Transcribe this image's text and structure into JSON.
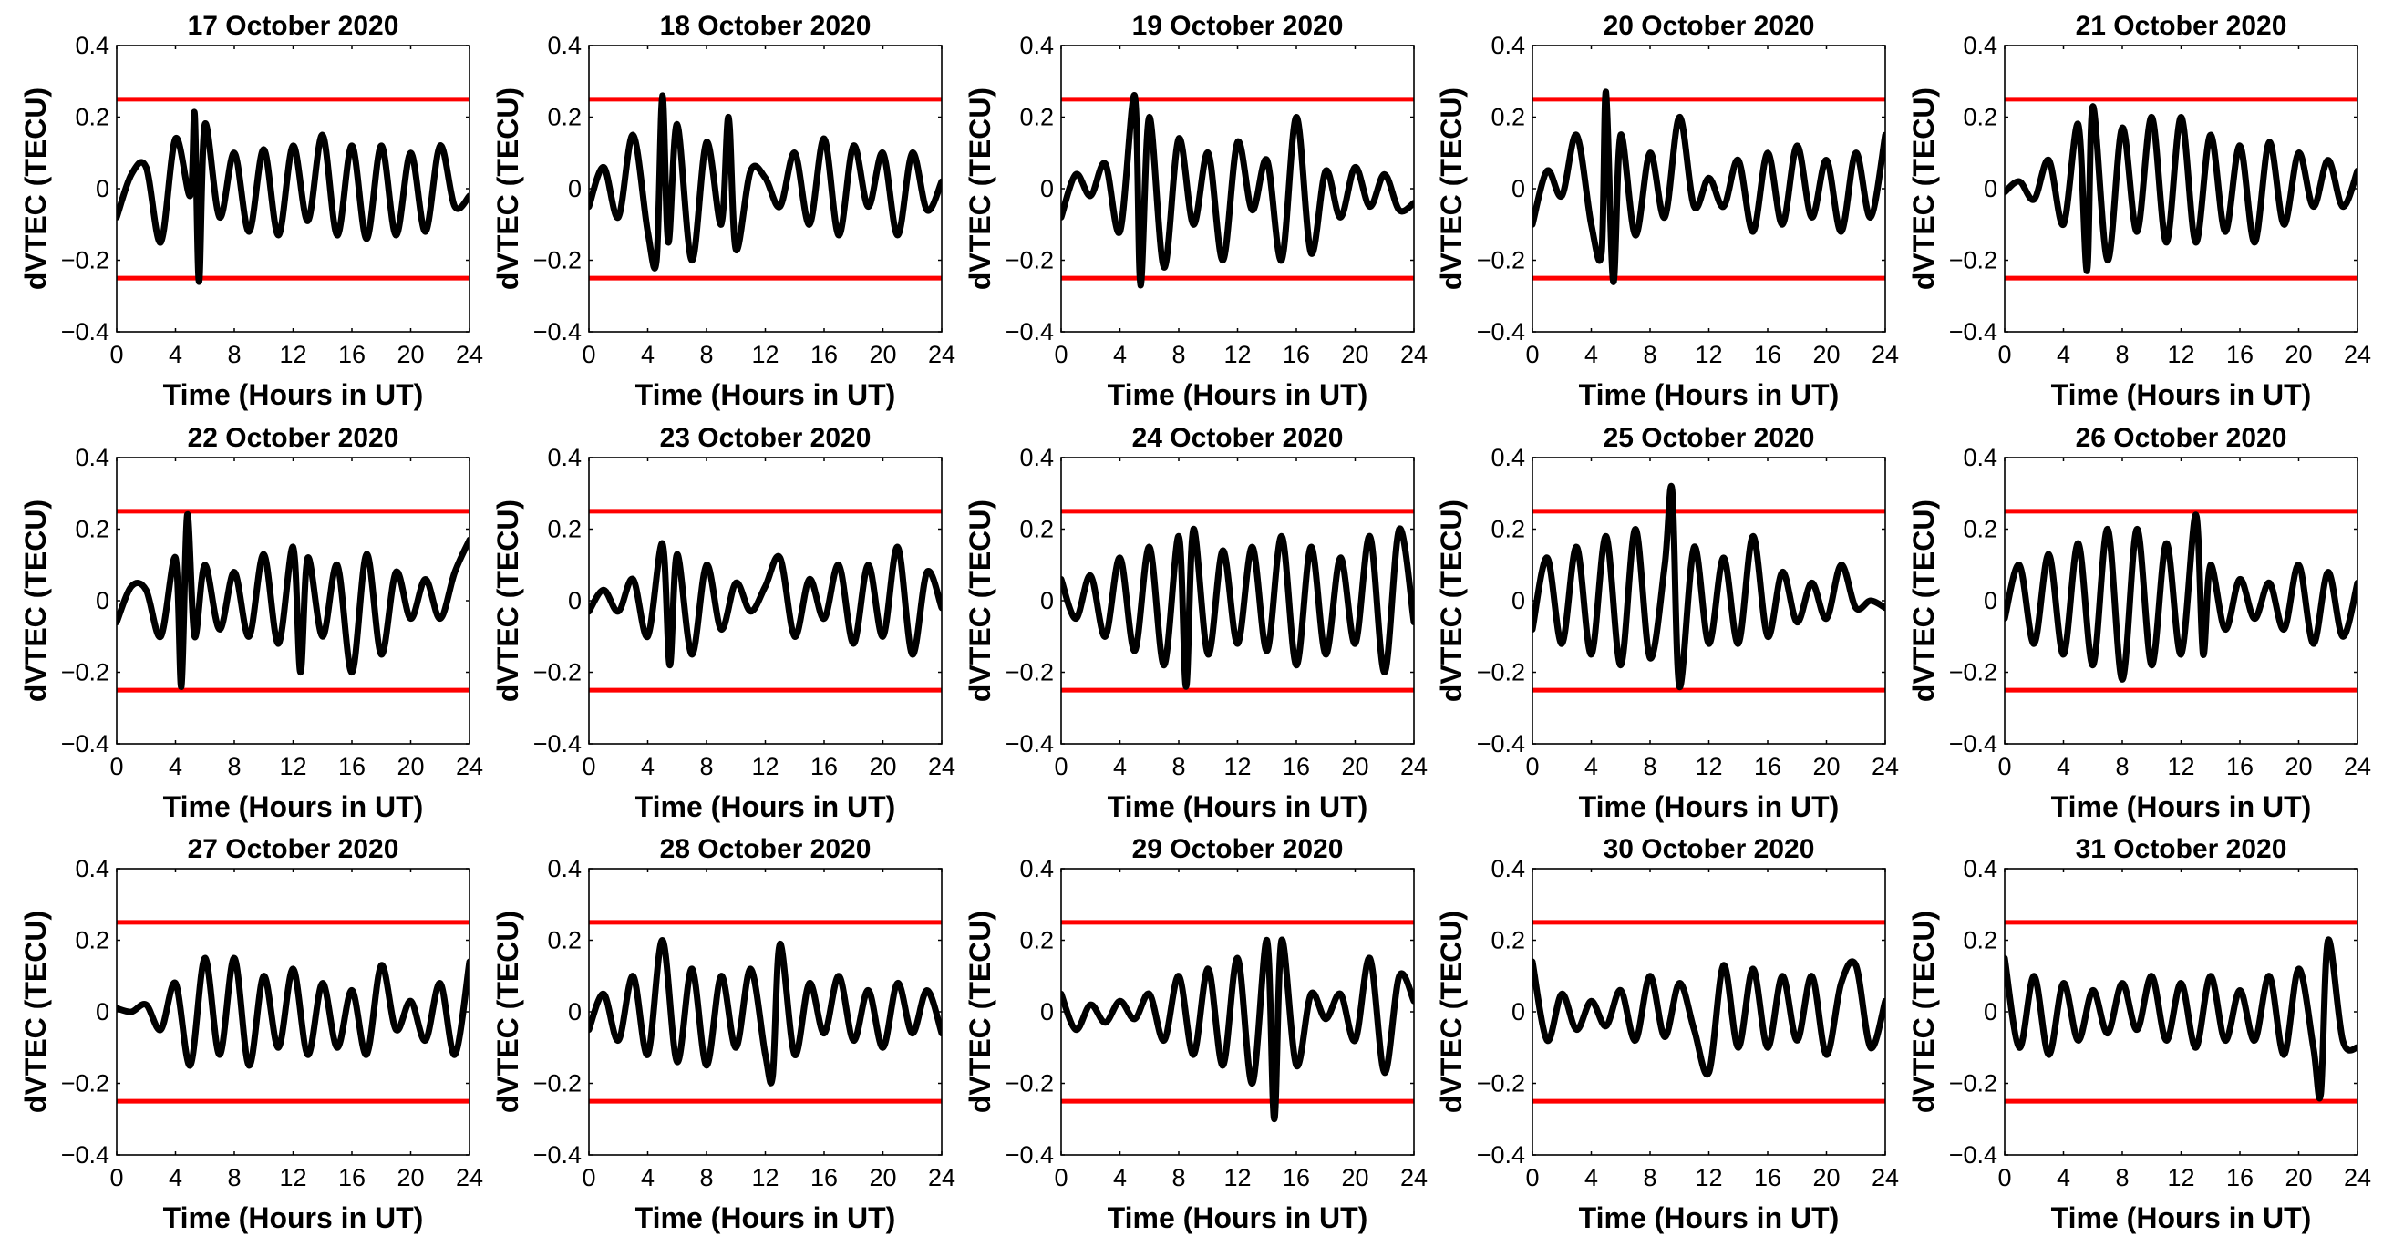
{
  "figure": {
    "xlabel": "Time (Hours in UT)",
    "ylabel": "dVTEC (TECU)",
    "xlim": [
      0,
      24
    ],
    "ylim": [
      -0.4,
      0.4
    ],
    "xticks": [
      "0",
      "4",
      "8",
      "12",
      "16",
      "20",
      "24"
    ],
    "yticks": [
      "0.4",
      "0.2",
      "0",
      "−0.2",
      "−0.4"
    ],
    "threshold_color": "#ff0000",
    "series_color": "#000000"
  },
  "chart_data": [
    {
      "type": "line",
      "title": "17 October 2020",
      "xlabel": "Time (Hours in UT)",
      "ylabel": "dVTEC (TECU)",
      "xlim": [
        0,
        24
      ],
      "ylim": [
        -0.4,
        0.4
      ],
      "thresholds": [
        0.25,
        -0.25
      ],
      "x": [
        0,
        1,
        2,
        3,
        4,
        5,
        5.3,
        5.6,
        6,
        7,
        8,
        9,
        10,
        11,
        12,
        13,
        14,
        15,
        16,
        17,
        18,
        19,
        20,
        21,
        22,
        23,
        24
      ],
      "values": [
        -0.08,
        0.04,
        0.06,
        -0.15,
        0.14,
        -0.02,
        0.21,
        -0.26,
        0.18,
        -0.08,
        0.1,
        -0.12,
        0.11,
        -0.13,
        0.12,
        -0.09,
        0.15,
        -0.13,
        0.12,
        -0.14,
        0.12,
        -0.13,
        0.1,
        -0.12,
        0.12,
        -0.05,
        -0.02
      ]
    },
    {
      "type": "line",
      "title": "18 October 2020",
      "xlabel": "Time (Hours in UT)",
      "ylabel": "dVTEC (TECU)",
      "xlim": [
        0,
        24
      ],
      "ylim": [
        -0.4,
        0.4
      ],
      "thresholds": [
        0.25,
        -0.25
      ],
      "x": [
        0,
        1,
        2,
        3,
        4,
        4.6,
        5,
        5.4,
        6,
        7,
        8,
        9,
        9.5,
        10,
        11,
        12,
        13,
        14,
        15,
        16,
        17,
        18,
        19,
        20,
        21,
        22,
        23,
        24
      ],
      "values": [
        -0.05,
        0.06,
        -0.08,
        0.15,
        -0.12,
        -0.2,
        0.26,
        -0.15,
        0.18,
        -0.2,
        0.13,
        -0.1,
        0.2,
        -0.17,
        0.05,
        0.03,
        -0.05,
        0.1,
        -0.1,
        0.14,
        -0.13,
        0.12,
        -0.05,
        0.1,
        -0.13,
        0.1,
        -0.06,
        0.02
      ]
    },
    {
      "type": "line",
      "title": "19 October 2020",
      "xlabel": "Time (Hours in UT)",
      "ylabel": "dVTEC (TECU)",
      "xlim": [
        0,
        24
      ],
      "ylim": [
        -0.4,
        0.4
      ],
      "thresholds": [
        0.25,
        -0.25
      ],
      "x": [
        0,
        1,
        2,
        3,
        4,
        5,
        5.4,
        6,
        7,
        8,
        9,
        10,
        11,
        12,
        13,
        14,
        15,
        16,
        17,
        18,
        19,
        20,
        21,
        22,
        23,
        24
      ],
      "values": [
        -0.08,
        0.04,
        -0.02,
        0.07,
        -0.12,
        0.26,
        -0.27,
        0.2,
        -0.22,
        0.14,
        -0.1,
        0.1,
        -0.2,
        0.13,
        -0.06,
        0.08,
        -0.2,
        0.2,
        -0.18,
        0.05,
        -0.08,
        0.06,
        -0.05,
        0.04,
        -0.06,
        -0.04
      ]
    },
    {
      "type": "line",
      "title": "20 October 2020",
      "xlabel": "Time (Hours in UT)",
      "ylabel": "dVTEC (TECU)",
      "xlim": [
        0,
        24
      ],
      "ylim": [
        -0.4,
        0.4
      ],
      "thresholds": [
        0.25,
        -0.25
      ],
      "x": [
        0,
        1,
        2,
        3,
        4,
        4.7,
        5,
        5.5,
        6,
        7,
        8,
        9,
        10,
        11,
        12,
        13,
        14,
        15,
        16,
        17,
        18,
        19,
        20,
        21,
        22,
        23,
        24
      ],
      "values": [
        -0.1,
        0.05,
        -0.02,
        0.15,
        -0.1,
        -0.18,
        0.27,
        -0.26,
        0.15,
        -0.13,
        0.1,
        -0.08,
        0.2,
        -0.05,
        0.03,
        -0.05,
        0.08,
        -0.12,
        0.1,
        -0.1,
        0.12,
        -0.08,
        0.08,
        -0.12,
        0.1,
        -0.08,
        0.15
      ]
    },
    {
      "type": "line",
      "title": "21 October 2020",
      "xlabel": "Time (Hours in UT)",
      "ylabel": "dVTEC (TECU)",
      "xlim": [
        0,
        24
      ],
      "ylim": [
        -0.4,
        0.4
      ],
      "thresholds": [
        0.25,
        -0.25
      ],
      "x": [
        0,
        1,
        2,
        3,
        4,
        5,
        5.6,
        6,
        7,
        8,
        9,
        10,
        11,
        12,
        13,
        14,
        15,
        16,
        17,
        18,
        19,
        20,
        21,
        22,
        23,
        24
      ],
      "values": [
        -0.01,
        0.02,
        -0.03,
        0.08,
        -0.1,
        0.18,
        -0.23,
        0.23,
        -0.2,
        0.17,
        -0.12,
        0.2,
        -0.15,
        0.2,
        -0.15,
        0.15,
        -0.12,
        0.12,
        -0.15,
        0.13,
        -0.1,
        0.1,
        -0.05,
        0.08,
        -0.05,
        0.05
      ]
    },
    {
      "type": "line",
      "title": "22 October 2020",
      "xlabel": "Time (Hours in UT)",
      "ylabel": "dVTEC (TECU)",
      "xlim": [
        0,
        24
      ],
      "ylim": [
        -0.4,
        0.4
      ],
      "thresholds": [
        0.25,
        -0.25
      ],
      "x": [
        0,
        1,
        2,
        3,
        4,
        4.4,
        4.8,
        5.3,
        6,
        7,
        8,
        9,
        10,
        11,
        12,
        12.5,
        13,
        14,
        15,
        16,
        17,
        18,
        19,
        20,
        21,
        22,
        23,
        24
      ],
      "values": [
        -0.06,
        0.04,
        0.03,
        -0.1,
        0.12,
        -0.24,
        0.24,
        -0.1,
        0.1,
        -0.08,
        0.08,
        -0.1,
        0.13,
        -0.12,
        0.15,
        -0.2,
        0.12,
        -0.1,
        0.1,
        -0.2,
        0.13,
        -0.15,
        0.08,
        -0.05,
        0.06,
        -0.05,
        0.08,
        0.17
      ]
    },
    {
      "type": "line",
      "title": "23 October 2020",
      "xlabel": "Time (Hours in UT)",
      "ylabel": "dVTEC (TECU)",
      "xlim": [
        0,
        24
      ],
      "ylim": [
        -0.4,
        0.4
      ],
      "thresholds": [
        0.25,
        -0.25
      ],
      "x": [
        0,
        1,
        2,
        3,
        4,
        5,
        5.5,
        6,
        7,
        8,
        9,
        10,
        11,
        12,
        13,
        14,
        15,
        16,
        17,
        18,
        19,
        20,
        21,
        22,
        23,
        24
      ],
      "values": [
        -0.03,
        0.03,
        -0.03,
        0.06,
        -0.1,
        0.16,
        -0.18,
        0.13,
        -0.15,
        0.1,
        -0.08,
        0.05,
        -0.03,
        0.04,
        0.12,
        -0.1,
        0.06,
        -0.05,
        0.1,
        -0.12,
        0.1,
        -0.1,
        0.15,
        -0.15,
        0.08,
        -0.02
      ]
    },
    {
      "type": "line",
      "title": "24 October 2020",
      "xlabel": "Time (Hours in UT)",
      "ylabel": "dVTEC (TECU)",
      "xlim": [
        0,
        24
      ],
      "ylim": [
        -0.4,
        0.4
      ],
      "thresholds": [
        0.25,
        -0.25
      ],
      "x": [
        0,
        1,
        2,
        3,
        4,
        5,
        6,
        7,
        8,
        8.5,
        9,
        10,
        11,
        12,
        13,
        14,
        15,
        16,
        17,
        18,
        19,
        20,
        21,
        22,
        23,
        24
      ],
      "values": [
        0.06,
        -0.05,
        0.07,
        -0.1,
        0.12,
        -0.14,
        0.15,
        -0.18,
        0.18,
        -0.24,
        0.2,
        -0.15,
        0.14,
        -0.12,
        0.15,
        -0.14,
        0.18,
        -0.18,
        0.15,
        -0.15,
        0.12,
        -0.12,
        0.18,
        -0.2,
        0.2,
        -0.06
      ]
    },
    {
      "type": "line",
      "title": "25 October 2020",
      "xlabel": "Time (Hours in UT)",
      "ylabel": "dVTEC (TECU)",
      "xlim": [
        0,
        24
      ],
      "ylim": [
        -0.4,
        0.4
      ],
      "thresholds": [
        0.25,
        -0.25
      ],
      "x": [
        0,
        1,
        2,
        3,
        4,
        5,
        6,
        7,
        8,
        9,
        9.5,
        10,
        11,
        12,
        13,
        14,
        15,
        16,
        17,
        18,
        19,
        20,
        21,
        22,
        23,
        24
      ],
      "values": [
        -0.08,
        0.12,
        -0.12,
        0.15,
        -0.15,
        0.18,
        -0.18,
        0.2,
        -0.16,
        0.1,
        0.31,
        -0.24,
        0.15,
        -0.12,
        0.12,
        -0.12,
        0.18,
        -0.1,
        0.08,
        -0.06,
        0.05,
        -0.05,
        0.1,
        -0.02,
        0.0,
        -0.02
      ]
    },
    {
      "type": "line",
      "title": "26 October 2020",
      "xlabel": "Time (Hours in UT)",
      "ylabel": "dVTEC (TECU)",
      "xlim": [
        0,
        24
      ],
      "ylim": [
        -0.4,
        0.4
      ],
      "thresholds": [
        0.25,
        -0.25
      ],
      "x": [
        0,
        1,
        2,
        3,
        4,
        5,
        6,
        7,
        8,
        9,
        10,
        11,
        12,
        13,
        13.5,
        14,
        15,
        16,
        17,
        18,
        19,
        20,
        21,
        22,
        23,
        24
      ],
      "values": [
        -0.05,
        0.1,
        -0.12,
        0.13,
        -0.15,
        0.16,
        -0.18,
        0.2,
        -0.22,
        0.2,
        -0.18,
        0.16,
        -0.15,
        0.24,
        -0.15,
        0.1,
        -0.08,
        0.06,
        -0.05,
        0.05,
        -0.08,
        0.1,
        -0.12,
        0.08,
        -0.1,
        0.05
      ]
    },
    {
      "type": "line",
      "title": "27 October 2020",
      "xlabel": "Time (Hours in UT)",
      "ylabel": "dVTEC (TECU)",
      "xlim": [
        0,
        24
      ],
      "ylim": [
        -0.4,
        0.4
      ],
      "thresholds": [
        0.25,
        -0.25
      ],
      "x": [
        0,
        1,
        2,
        3,
        4,
        5,
        6,
        7,
        8,
        9,
        10,
        11,
        12,
        13,
        14,
        15,
        16,
        17,
        18,
        19,
        20,
        21,
        22,
        23,
        24
      ],
      "values": [
        0.01,
        0.0,
        0.02,
        -0.05,
        0.08,
        -0.15,
        0.15,
        -0.12,
        0.15,
        -0.15,
        0.1,
        -0.1,
        0.12,
        -0.12,
        0.08,
        -0.1,
        0.06,
        -0.12,
        0.13,
        -0.05,
        0.03,
        -0.08,
        0.08,
        -0.12,
        0.14
      ]
    },
    {
      "type": "line",
      "title": "28 October 2020",
      "xlabel": "Time (Hours in UT)",
      "ylabel": "dVTEC (TECU)",
      "xlim": [
        0,
        24
      ],
      "ylim": [
        -0.4,
        0.4
      ],
      "thresholds": [
        0.25,
        -0.25
      ],
      "x": [
        0,
        1,
        2,
        3,
        4,
        5,
        6,
        7,
        8,
        9,
        10,
        11,
        12,
        12.5,
        13,
        14,
        15,
        16,
        17,
        18,
        19,
        20,
        21,
        22,
        23,
        24
      ],
      "values": [
        -0.05,
        0.05,
        -0.08,
        0.1,
        -0.12,
        0.2,
        -0.14,
        0.12,
        -0.15,
        0.1,
        -0.1,
        0.12,
        -0.12,
        -0.18,
        0.19,
        -0.12,
        0.08,
        -0.06,
        0.1,
        -0.08,
        0.06,
        -0.1,
        0.08,
        -0.06,
        0.06,
        -0.06
      ]
    },
    {
      "type": "line",
      "title": "29 October 2020",
      "xlabel": "Time (Hours in UT)",
      "ylabel": "dVTEC (TECU)",
      "xlim": [
        0,
        24
      ],
      "ylim": [
        -0.4,
        0.4
      ],
      "thresholds": [
        0.25,
        -0.25
      ],
      "x": [
        0,
        1,
        2,
        3,
        4,
        5,
        6,
        7,
        8,
        9,
        10,
        11,
        12,
        13,
        14,
        14.5,
        15,
        16,
        17,
        18,
        19,
        20,
        21,
        22,
        23,
        24
      ],
      "values": [
        0.05,
        -0.05,
        0.02,
        -0.03,
        0.03,
        -0.02,
        0.05,
        -0.08,
        0.1,
        -0.12,
        0.12,
        -0.15,
        0.15,
        -0.2,
        0.2,
        -0.3,
        0.2,
        -0.15,
        0.05,
        -0.02,
        0.05,
        -0.08,
        0.15,
        -0.17,
        0.1,
        0.03
      ]
    },
    {
      "type": "line",
      "title": "30 October 2020",
      "xlabel": "Time (Hours in UT)",
      "ylabel": "dVTEC (TECU)",
      "xlim": [
        0,
        24
      ],
      "ylim": [
        -0.4,
        0.4
      ],
      "thresholds": [
        0.25,
        -0.25
      ],
      "x": [
        0,
        1,
        2,
        3,
        4,
        5,
        6,
        7,
        8,
        9,
        10,
        11,
        12,
        13,
        14,
        15,
        16,
        17,
        18,
        19,
        20,
        21,
        22,
        23,
        24
      ],
      "values": [
        0.14,
        -0.08,
        0.05,
        -0.05,
        0.03,
        -0.04,
        0.06,
        -0.08,
        0.1,
        -0.07,
        0.08,
        -0.05,
        -0.17,
        0.13,
        -0.1,
        0.12,
        -0.1,
        0.1,
        -0.08,
        0.1,
        -0.12,
        0.08,
        0.13,
        -0.1,
        0.03
      ]
    },
    {
      "type": "line",
      "title": "31 October 2020",
      "xlabel": "Time (Hours in UT)",
      "ylabel": "dVTEC (TECU)",
      "xlim": [
        0,
        24
      ],
      "ylim": [
        -0.4,
        0.4
      ],
      "thresholds": [
        0.25,
        -0.25
      ],
      "x": [
        0,
        1,
        2,
        3,
        4,
        5,
        6,
        7,
        8,
        9,
        10,
        11,
        12,
        13,
        14,
        15,
        16,
        17,
        18,
        19,
        20,
        21,
        21.5,
        22,
        23,
        24
      ],
      "values": [
        0.15,
        -0.1,
        0.1,
        -0.12,
        0.08,
        -0.08,
        0.06,
        -0.06,
        0.08,
        -0.05,
        0.1,
        -0.08,
        0.08,
        -0.1,
        0.1,
        -0.08,
        0.06,
        -0.08,
        0.1,
        -0.12,
        0.12,
        -0.1,
        -0.23,
        0.2,
        -0.08,
        -0.1
      ]
    }
  ]
}
